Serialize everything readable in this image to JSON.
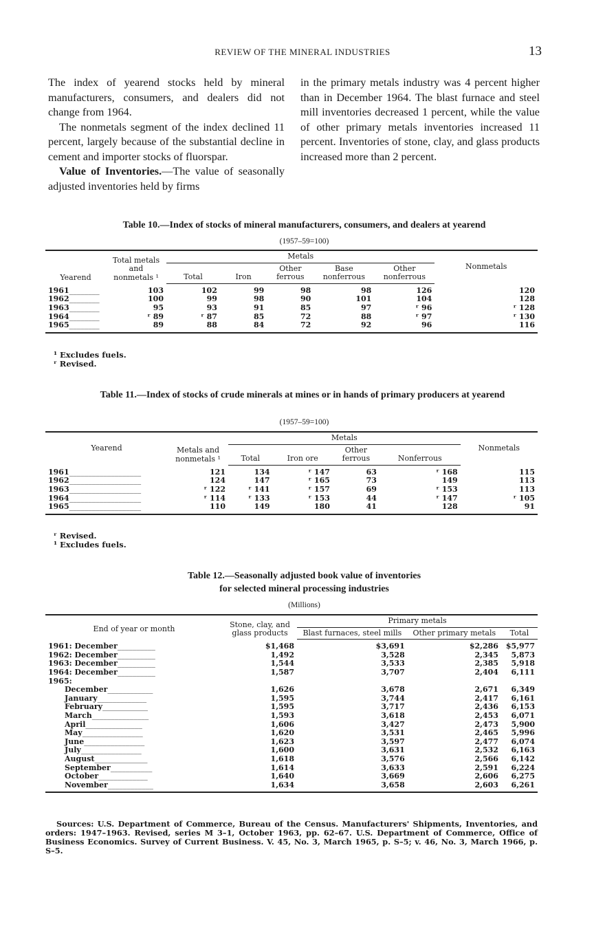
{
  "header": {
    "title": "REVIEW OF THE MINERAL INDUSTRIES",
    "page_number": "13"
  },
  "text": {
    "left": [
      "The index of yearend stocks held by mineral manufacturers, consumers, and dealers did not change from 1964.",
      "The nonmetals segment of the index declined 11 percent, largely because of the substantial decline in cement and importer stocks of fluorspar."
    ],
    "left_bold_lead": "Value of Inventories.",
    "left_last": "—The value of seasonally adjusted inventories held by firms",
    "right": "in the primary metals industry was 4 percent higher than in December 1964. The blast furnace and steel mill inventories decreased 1 percent, while the value of other primary metals inventories increased 11 percent. Inventories of stone, clay, and glass products increased more than 2 percent."
  },
  "table10": {
    "title": "Table 10.—Index of stocks of mineral manufacturers, consumers, and dealers at yearend",
    "subtitle": "(1957–59=100)",
    "headers": {
      "yearend": "Yearend",
      "total_all": "Total metals and nonmetals ¹",
      "metals": "Metals",
      "total": "Total",
      "iron": "Iron",
      "other_ferrous": "Other ferrous",
      "base_nonferrous": "Base nonferrous",
      "other_nonferrous": "Other nonferrous",
      "nonmetals": "Nonmetals"
    },
    "rows": [
      [
        "1961",
        "103",
        "102",
        "99",
        "98",
        "98",
        "126",
        "120"
      ],
      [
        "1962",
        "100",
        "99",
        "98",
        "90",
        "101",
        "104",
        "128"
      ],
      [
        "1963",
        "95",
        "93",
        "91",
        "85",
        "97",
        "ʳ 96",
        "ʳ 128"
      ],
      [
        "1964",
        "ʳ 89",
        "ʳ 87",
        "85",
        "72",
        "88",
        "ʳ 97",
        "ʳ 130"
      ],
      [
        "1965",
        "89",
        "88",
        "84",
        "72",
        "92",
        "96",
        "116"
      ]
    ],
    "footnotes": [
      "¹ Excludes fuels.",
      "ʳ Revised."
    ]
  },
  "table11": {
    "title": "Table 11.—Index of stocks of crude minerals at mines or in hands of primary producers at yearend",
    "subtitle": "(1957–59=100)",
    "headers": {
      "yearend": "Yearend",
      "total_all": "Metals and nonmetals ¹",
      "metals": "Metals",
      "total": "Total",
      "iron_ore": "Iron ore",
      "other_ferrous": "Other ferrous",
      "nonferrous": "Nonferrous",
      "nonmetals": "Nonmetals"
    },
    "rows": [
      [
        "1961",
        "121",
        "134",
        "ʳ 147",
        "63",
        "ʳ 168",
        "115"
      ],
      [
        "1962",
        "124",
        "147",
        "ʳ 165",
        "73",
        "149",
        "113"
      ],
      [
        "1963",
        "ʳ 122",
        "ʳ 141",
        "ʳ 157",
        "69",
        "ʳ 153",
        "113"
      ],
      [
        "1964",
        "ʳ 114",
        "ʳ 133",
        "ʳ 153",
        "44",
        "ʳ 147",
        "ʳ 105"
      ],
      [
        "1965",
        "110",
        "149",
        "180",
        "41",
        "128",
        "91"
      ]
    ],
    "footnotes": [
      "ʳ Revised.",
      "¹ Excludes fuels."
    ]
  },
  "table12": {
    "title_line1": "Table 12.—Seasonally adjusted book value of inventories",
    "title_line2": "for selected mineral processing industries",
    "subtitle": "(Millions)",
    "headers": {
      "period": "End of year or month",
      "stone": "Stone, clay, and glass products",
      "primary": "Primary metals",
      "blast": "Blast furnaces, steel mills",
      "other": "Other primary metals",
      "total": "Total"
    },
    "rows": [
      [
        "1961: December",
        "$1,468",
        "$3,691",
        "$2,286",
        "$5,977"
      ],
      [
        "1962: December",
        "1,492",
        "3,528",
        "2,345",
        "5,873"
      ],
      [
        "1963: December",
        "1,544",
        "3,533",
        "2,385",
        "5,918"
      ],
      [
        "1964: December",
        "1,587",
        "3,707",
        "2,404",
        "6,111"
      ],
      [
        "1965:",
        "",
        "",
        "",
        ""
      ],
      [
        "December",
        "1,626",
        "3,678",
        "2,671",
        "6,349"
      ],
      [
        "January",
        "1,595",
        "3,744",
        "2,417",
        "6,161"
      ],
      [
        "February",
        "1,595",
        "3,717",
        "2,436",
        "6,153"
      ],
      [
        "March",
        "1,593",
        "3,618",
        "2,453",
        "6,071"
      ],
      [
        "April",
        "1,606",
        "3,427",
        "2,473",
        "5,900"
      ],
      [
        "May",
        "1,620",
        "3,531",
        "2,465",
        "5,996"
      ],
      [
        "June",
        "1,623",
        "3,597",
        "2,477",
        "6,074"
      ],
      [
        "July",
        "1,600",
        "3,631",
        "2,532",
        "6,163"
      ],
      [
        "August",
        "1,618",
        "3,576",
        "2,566",
        "6,142"
      ],
      [
        "September",
        "1,614",
        "3,633",
        "2,591",
        "6,224"
      ],
      [
        "October",
        "1,640",
        "3,669",
        "2,606",
        "6,275"
      ],
      [
        "November",
        "1,634",
        "3,658",
        "2,603",
        "6,261"
      ]
    ],
    "sources": "Sources: U.S. Department of Commerce, Bureau of the Census. Manufacturers' Shipments, Inventories, and orders: 1947–1963. Revised, series M 3–1, October 1963, pp. 62–67. U.S. Department of Commerce, Office of Business Economics. Survey of Current Business. V. 45, No. 3, March 1965, p. S–5; v. 46, No. 3, March 1966, p. S–5."
  }
}
